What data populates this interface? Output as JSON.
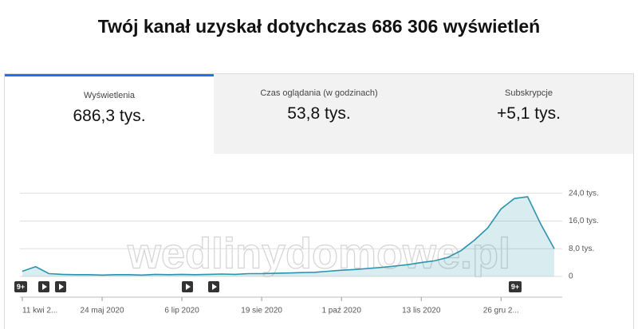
{
  "header": {
    "title": "Twój kanał uzyskał dotychczas 686 306 wyświetleń"
  },
  "tabs": [
    {
      "label": "Wyświetlenia",
      "value": "686,3 tys."
    },
    {
      "label": "Czas oglądania (w godzinach)",
      "value": "53,8 tys."
    },
    {
      "label": "Subskrypcje",
      "value": "+5,1 tys."
    }
  ],
  "watermark": "wedlinydomowe.pl",
  "chart_data": {
    "type": "line",
    "categories": [
      "11 kwi 2...",
      null,
      null,
      null,
      null,
      null,
      "24 maj 2020",
      null,
      null,
      null,
      null,
      null,
      "6 lip 2020",
      null,
      null,
      null,
      null,
      null,
      "19 sie 2020",
      null,
      null,
      null,
      null,
      null,
      "1 paź 2020",
      null,
      null,
      null,
      null,
      null,
      "13 lis 2020",
      null,
      null,
      null,
      null,
      null,
      "26 gru 2...",
      null,
      null,
      null,
      null
    ],
    "series": [
      {
        "color": "#2a93ad",
        "values": [
          1.5,
          2.8,
          0.8,
          0.6,
          0.5,
          0.5,
          0.4,
          0.5,
          0.5,
          0.4,
          0.6,
          0.5,
          0.6,
          0.5,
          0.6,
          0.7,
          0.6,
          0.8,
          0.8,
          0.9,
          1.0,
          1.1,
          1.2,
          1.5,
          1.8,
          2.0,
          2.3,
          2.6,
          3.0,
          3.4,
          4.0,
          4.5,
          5.5,
          7.5,
          10.5,
          14.0,
          19.5,
          22.5,
          23.0,
          15.0,
          8.0
        ]
      }
    ],
    "ylim": [
      0,
      24.5
    ],
    "yticks": [
      0,
      {
        "value": 8,
        "label": "8,0 tys."
      },
      {
        "value": 16,
        "label": "16,0 tys."
      },
      {
        "value": 24,
        "label": "24,0 tys."
      }
    ],
    "grid": true,
    "annotations": [
      {
        "index": 0,
        "label": "9+"
      },
      {
        "index": 37,
        "label": "9+"
      }
    ]
  }
}
